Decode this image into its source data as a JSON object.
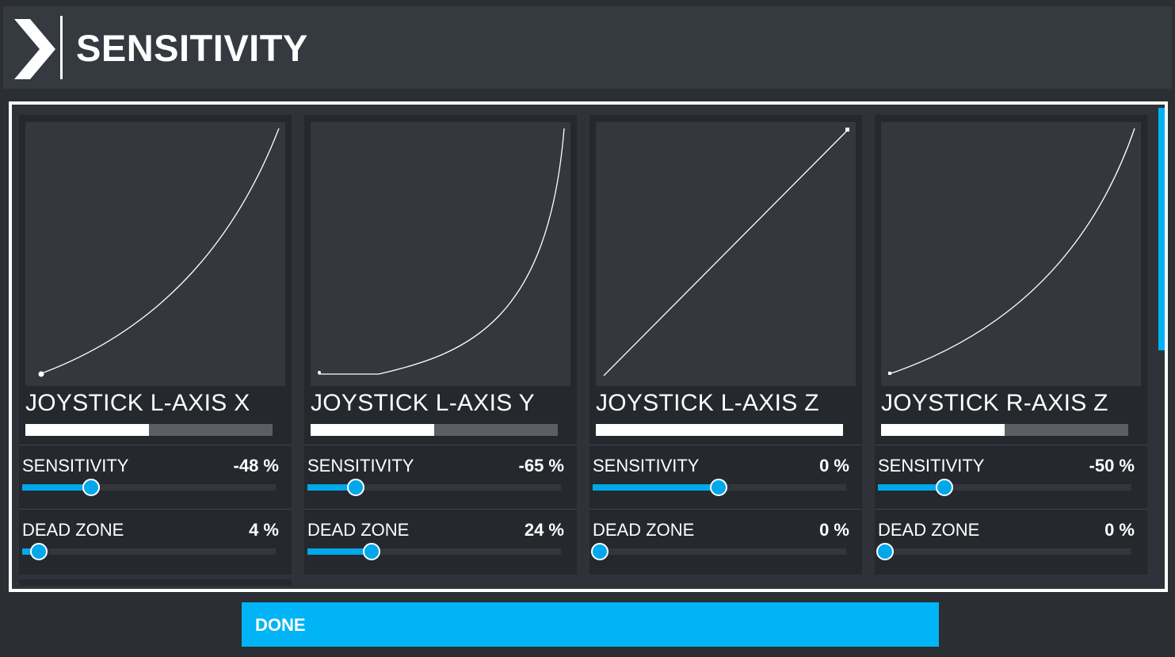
{
  "header": {
    "title": "SENSITIVITY",
    "icon": "chevron-right-icon"
  },
  "theme": {
    "accent": "#00a8ea",
    "done_bg": "#00b4f6",
    "card_bg": "#25282d",
    "graph_bg": "#34373d"
  },
  "cards": [
    {
      "title": "JOYSTICK L-AXIS X",
      "progress": 0.5,
      "sensitivity": {
        "label": "SENSITIVITY",
        "value_text": "-48 %",
        "value": -48
      },
      "dead_zone": {
        "label": "DEAD ZONE",
        "value_text": "4 %",
        "value": 4
      }
    },
    {
      "title": "JOYSTICK L-AXIS Y",
      "progress": 0.5,
      "sensitivity": {
        "label": "SENSITIVITY",
        "value_text": "-65 %",
        "value": -65
      },
      "dead_zone": {
        "label": "DEAD ZONE",
        "value_text": "24 %",
        "value": 24
      }
    },
    {
      "title": "JOYSTICK L-AXIS Z",
      "progress": 1.0,
      "sensitivity": {
        "label": "SENSITIVITY",
        "value_text": "0 %",
        "value": 0
      },
      "dead_zone": {
        "label": "DEAD ZONE",
        "value_text": "0 %",
        "value": 0
      }
    },
    {
      "title": "JOYSTICK R-AXIS Z",
      "progress": 0.5,
      "sensitivity": {
        "label": "SENSITIVITY",
        "value_text": "-50 %",
        "value": -50
      },
      "dead_zone": {
        "label": "DEAD ZONE",
        "value_text": "0 %",
        "value": 0
      }
    }
  ],
  "footer": {
    "done_label": "DONE"
  }
}
